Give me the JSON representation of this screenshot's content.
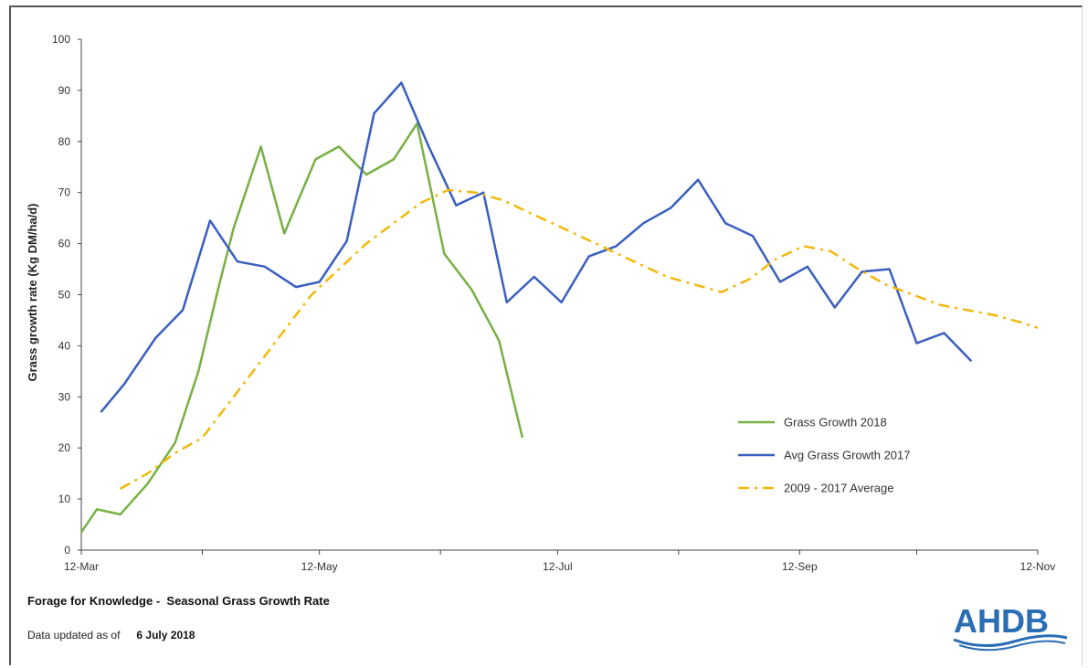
{
  "chart_data": {
    "type": "line",
    "ylabel": "Grass growth rate (Kg DM/ha/d)",
    "ylim": [
      0,
      100
    ],
    "yticks": [
      0,
      10,
      20,
      30,
      40,
      50,
      60,
      70,
      80,
      90,
      100
    ],
    "xlim": [
      "2018-03-12",
      "2018-11-12"
    ],
    "xtick_labels": [
      "12-Mar",
      "12-May",
      "12-Jul",
      "12-Sep",
      "12-Nov"
    ],
    "xtick_dates": [
      "2018-03-12",
      "2018-05-12",
      "2018-07-12",
      "2018-09-12",
      "2018-11-12"
    ],
    "grid": false,
    "legend_position": "right",
    "series": [
      {
        "name": "Grass Growth 2018",
        "color": "#77b043",
        "style": "solid",
        "points": [
          [
            "2018-03-12",
            3.5
          ],
          [
            "2018-03-16",
            8
          ],
          [
            "2018-03-22",
            7
          ],
          [
            "2018-03-29",
            13
          ],
          [
            "2018-04-05",
            21
          ],
          [
            "2018-04-11",
            35
          ],
          [
            "2018-04-16",
            51
          ],
          [
            "2018-04-20",
            63
          ],
          [
            "2018-04-27",
            79
          ],
          [
            "2018-05-03",
            62
          ],
          [
            "2018-05-11",
            76.5
          ],
          [
            "2018-05-17",
            79
          ],
          [
            "2018-05-24",
            73.5
          ],
          [
            "2018-05-31",
            76.5
          ],
          [
            "2018-06-06",
            83.5
          ],
          [
            "2018-06-13",
            58
          ],
          [
            "2018-06-20",
            51
          ],
          [
            "2018-06-27",
            41
          ],
          [
            "2018-07-03",
            22
          ]
        ]
      },
      {
        "name": "Avg Grass Growth 2017",
        "color": "#3a5fbf",
        "style": "solid",
        "points": [
          [
            "2018-03-17",
            27
          ],
          [
            "2018-03-23",
            32.5
          ],
          [
            "2018-03-31",
            41.5
          ],
          [
            "2018-04-07",
            47
          ],
          [
            "2018-04-14",
            64.5
          ],
          [
            "2018-04-21",
            56.5
          ],
          [
            "2018-04-28",
            55.5
          ],
          [
            "2018-05-06",
            51.5
          ],
          [
            "2018-05-12",
            52.5
          ],
          [
            "2018-05-19",
            60.5
          ],
          [
            "2018-05-26",
            85.5
          ],
          [
            "2018-06-02",
            91.5
          ],
          [
            "2018-06-09",
            79
          ],
          [
            "2018-06-16",
            67.5
          ],
          [
            "2018-06-23",
            70
          ],
          [
            "2018-06-29",
            48.5
          ],
          [
            "2018-07-06",
            53.5
          ],
          [
            "2018-07-13",
            48.5
          ],
          [
            "2018-07-20",
            57.5
          ],
          [
            "2018-07-27",
            59.5
          ],
          [
            "2018-08-03",
            64
          ],
          [
            "2018-08-10",
            67
          ],
          [
            "2018-08-17",
            72.5
          ],
          [
            "2018-08-24",
            64
          ],
          [
            "2018-08-31",
            61.5
          ],
          [
            "2018-09-07",
            52.5
          ],
          [
            "2018-09-14",
            55.5
          ],
          [
            "2018-09-21",
            47.5
          ],
          [
            "2018-09-28",
            54.5
          ],
          [
            "2018-10-05",
            55
          ],
          [
            "2018-10-12",
            40.5
          ],
          [
            "2018-10-19",
            42.5
          ],
          [
            "2018-10-26",
            37
          ]
        ]
      },
      {
        "name": "2009 - 2017 Average",
        "color": "#f2b80a",
        "style": "dash-dot",
        "points": [
          [
            "2018-03-22",
            12
          ],
          [
            "2018-03-29",
            15
          ],
          [
            "2018-04-05",
            19
          ],
          [
            "2018-04-12",
            22
          ],
          [
            "2018-04-19",
            29
          ],
          [
            "2018-04-26",
            36
          ],
          [
            "2018-05-03",
            43
          ],
          [
            "2018-05-10",
            50
          ],
          [
            "2018-05-17",
            55
          ],
          [
            "2018-05-24",
            60
          ],
          [
            "2018-05-31",
            64
          ],
          [
            "2018-06-07",
            68
          ],
          [
            "2018-06-14",
            70.5
          ],
          [
            "2018-06-21",
            70
          ],
          [
            "2018-06-28",
            68.5
          ],
          [
            "2018-07-05",
            66
          ],
          [
            "2018-07-12",
            63.5
          ],
          [
            "2018-07-19",
            61
          ],
          [
            "2018-07-26",
            58.5
          ],
          [
            "2018-08-02",
            56
          ],
          [
            "2018-08-09",
            53.5
          ],
          [
            "2018-08-16",
            52
          ],
          [
            "2018-08-23",
            50.5
          ],
          [
            "2018-08-30",
            53
          ],
          [
            "2018-09-06",
            57
          ],
          [
            "2018-09-13",
            59.5
          ],
          [
            "2018-09-20",
            58.5
          ],
          [
            "2018-09-27",
            55
          ],
          [
            "2018-10-04",
            52
          ],
          [
            "2018-10-11",
            50
          ],
          [
            "2018-10-18",
            48
          ],
          [
            "2018-10-25",
            47
          ],
          [
            "2018-11-01",
            46
          ],
          [
            "2018-11-08",
            44.5
          ],
          [
            "2018-11-12",
            43.5
          ]
        ]
      }
    ]
  },
  "footer": {
    "title": "Forage for Knowledge -  Seasonal Grass Growth Rate",
    "updated_label": "Data updated as of",
    "updated_date": "6 July 2018"
  },
  "logo": {
    "text": "AHDB",
    "color": "#2a6db5"
  }
}
